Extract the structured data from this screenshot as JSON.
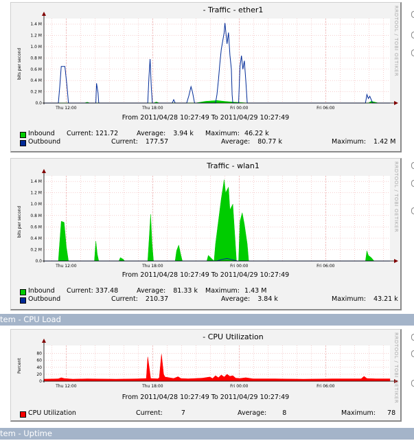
{
  "sections": [
    {
      "label": "tem - CPU Load"
    },
    {
      "label": "tem - Uptime"
    }
  ],
  "watermark": "RRDTOOL / TOBI OETIKER",
  "chart_data": [
    {
      "type": "area",
      "title": "- Traffic - ether1",
      "ylabel": "bits per second",
      "yticks": [
        "0.0",
        "0.2 M",
        "0.4 M",
        "0.6 M",
        "0.8 M",
        "1.0 M",
        "1.2 M",
        "1.4 M"
      ],
      "ylim": [
        0,
        1450000
      ],
      "xticks": [
        "Thu 12:00",
        "Thu 18:00",
        "Fri 00:00",
        "Fri 06:00"
      ],
      "xtick_hours": [
        1.54,
        7.54,
        13.54,
        19.54
      ],
      "xlim_hours": [
        0,
        24
      ],
      "range": "From 2011/04/28 10:27:49 To 2011/04/29 10:27:49",
      "series": [
        {
          "name": "Inbound",
          "color": "#00cc00",
          "style": "area",
          "current": "121.72",
          "average": "3.94 k",
          "maximum": "46.22 k",
          "points": [
            [
              0,
              0
            ],
            [
              2.8,
              0
            ],
            [
              3.0,
              15000
            ],
            [
              3.2,
              0
            ],
            [
              7.6,
              0
            ],
            [
              7.8,
              20000
            ],
            [
              8.0,
              0
            ],
            [
              10.5,
              0
            ],
            [
              11.2,
              30000
            ],
            [
              12.0,
              45000
            ],
            [
              12.5,
              30000
            ],
            [
              13.0,
              20000
            ],
            [
              14.2,
              0
            ],
            [
              22.5,
              0
            ],
            [
              22.7,
              30000
            ],
            [
              22.9,
              20000
            ],
            [
              23.2,
              0
            ],
            [
              24,
              0
            ]
          ]
        },
        {
          "name": "Outbound",
          "color": "#002a97",
          "style": "line",
          "current": "177.57",
          "average": "80.77 k",
          "maximum": "1.42 M",
          "points": [
            [
              0,
              0
            ],
            [
              1.0,
              0
            ],
            [
              1.1,
              300000
            ],
            [
              1.2,
              650000
            ],
            [
              1.45,
              650000
            ],
            [
              1.6,
              300000
            ],
            [
              1.7,
              0
            ],
            [
              3.6,
              0
            ],
            [
              3.65,
              350000
            ],
            [
              3.75,
              180000
            ],
            [
              3.8,
              0
            ],
            [
              7.2,
              0
            ],
            [
              7.28,
              450000
            ],
            [
              7.36,
              780000
            ],
            [
              7.45,
              250000
            ],
            [
              7.52,
              0
            ],
            [
              8.9,
              0
            ],
            [
              9.0,
              60000
            ],
            [
              9.1,
              0
            ],
            [
              9.9,
              0
            ],
            [
              10.05,
              130000
            ],
            [
              10.2,
              290000
            ],
            [
              10.3,
              200000
            ],
            [
              10.45,
              0
            ],
            [
              11.9,
              0
            ],
            [
              12.0,
              150000
            ],
            [
              12.1,
              400000
            ],
            [
              12.2,
              700000
            ],
            [
              12.3,
              950000
            ],
            [
              12.4,
              1100000
            ],
            [
              12.5,
              1250000
            ],
            [
              12.55,
              1420000
            ],
            [
              12.6,
              1300000
            ],
            [
              12.7,
              1050000
            ],
            [
              12.8,
              1250000
            ],
            [
              12.9,
              850000
            ],
            [
              13.0,
              600000
            ],
            [
              13.05,
              150000
            ],
            [
              13.1,
              0
            ],
            [
              13.5,
              0
            ],
            [
              13.6,
              650000
            ],
            [
              13.7,
              840000
            ],
            [
              13.8,
              600000
            ],
            [
              13.9,
              750000
            ],
            [
              14.0,
              400000
            ],
            [
              14.1,
              0
            ],
            [
              22.3,
              0
            ],
            [
              22.4,
              150000
            ],
            [
              22.5,
              80000
            ],
            [
              22.6,
              120000
            ],
            [
              22.8,
              0
            ],
            [
              24,
              0
            ]
          ]
        }
      ]
    },
    {
      "type": "area",
      "title": "Traffic - wlan1",
      "ylabel": "bits per second",
      "yticks": [
        "0.0",
        "0.2 M",
        "0.4 M",
        "0.6 M",
        "0.8 M",
        "1.0 M",
        "1.2 M",
        "1.4 M"
      ],
      "ylim": [
        0,
        1450000
      ],
      "xticks": [
        "Thu 12:00",
        "Thu 18:00",
        "Fri 00:00",
        "Fri 06:00"
      ],
      "xtick_hours": [
        1.54,
        7.54,
        13.54,
        19.54
      ],
      "xlim_hours": [
        0,
        24
      ],
      "range": "From 2011/04/28 10:27:49 To 2011/04/29 10:27:49",
      "series": [
        {
          "name": "Inbound",
          "color": "#00cc00",
          "style": "area",
          "current": "337.48",
          "average": "81.33 k",
          "maximum": "1.43 M",
          "points": [
            [
              0,
              0
            ],
            [
              1.0,
              0
            ],
            [
              1.1,
              350000
            ],
            [
              1.2,
              700000
            ],
            [
              1.4,
              680000
            ],
            [
              1.55,
              250000
            ],
            [
              1.7,
              0
            ],
            [
              3.5,
              0
            ],
            [
              3.6,
              350000
            ],
            [
              3.7,
              120000
            ],
            [
              3.8,
              0
            ],
            [
              5.2,
              0
            ],
            [
              5.3,
              60000
            ],
            [
              5.5,
              30000
            ],
            [
              5.6,
              0
            ],
            [
              7.2,
              0
            ],
            [
              7.3,
              400000
            ],
            [
              7.4,
              820000
            ],
            [
              7.5,
              300000
            ],
            [
              7.6,
              0
            ],
            [
              9.1,
              0
            ],
            [
              9.2,
              180000
            ],
            [
              9.35,
              280000
            ],
            [
              9.5,
              100000
            ],
            [
              9.6,
              0
            ],
            [
              11.3,
              0
            ],
            [
              11.4,
              100000
            ],
            [
              11.6,
              50000
            ],
            [
              11.8,
              0
            ],
            [
              11.9,
              300000
            ],
            [
              12.1,
              700000
            ],
            [
              12.3,
              1100000
            ],
            [
              12.5,
              1430000
            ],
            [
              12.6,
              1200000
            ],
            [
              12.8,
              1300000
            ],
            [
              12.9,
              900000
            ],
            [
              13.1,
              1000000
            ],
            [
              13.25,
              400000
            ],
            [
              13.35,
              0
            ],
            [
              13.5,
              0
            ],
            [
              13.6,
              700000
            ],
            [
              13.75,
              850000
            ],
            [
              13.9,
              650000
            ],
            [
              14.1,
              300000
            ],
            [
              14.2,
              0
            ],
            [
              22.3,
              0
            ],
            [
              22.4,
              180000
            ],
            [
              22.5,
              100000
            ],
            [
              22.7,
              60000
            ],
            [
              22.9,
              0
            ],
            [
              24,
              0
            ]
          ]
        },
        {
          "name": "Outbound",
          "color": "#002a97",
          "style": "line",
          "current": "210.37",
          "average": "3.84 k",
          "maximum": "43.21 k",
          "points": [
            [
              0,
              0
            ],
            [
              12.0,
              0
            ],
            [
              12.3,
              25000
            ],
            [
              12.7,
              43000
            ],
            [
              13.1,
              20000
            ],
            [
              13.4,
              0
            ],
            [
              24,
              0
            ]
          ]
        }
      ]
    },
    {
      "type": "area",
      "title": "- CPU Utilization",
      "ylabel": "Percent",
      "yticks": [
        "0",
        "20",
        "40",
        "60",
        "80"
      ],
      "ylim": [
        0,
        95
      ],
      "xticks": [
        "Thu 12:00",
        "Thu 18:00",
        "Fri 00:00",
        "Fri 06:00"
      ],
      "xtick_hours": [
        1.54,
        7.54,
        13.54,
        19.54
      ],
      "xlim_hours": [
        0,
        24
      ],
      "range": "From 2011/04/28 10:27:49 To 2011/04/29 10:27:49",
      "series": [
        {
          "name": "CPU Utilization",
          "color": "#ff0000",
          "style": "area",
          "current": "7",
          "average": "8",
          "maximum": "78",
          "points": [
            [
              0,
              6
            ],
            [
              1.0,
              7
            ],
            [
              1.2,
              10
            ],
            [
              1.4,
              8
            ],
            [
              2.0,
              6
            ],
            [
              3.0,
              7
            ],
            [
              5.0,
              6
            ],
            [
              6.5,
              7
            ],
            [
              7.1,
              8
            ],
            [
              7.2,
              70
            ],
            [
              7.3,
              40
            ],
            [
              7.4,
              8
            ],
            [
              7.9,
              7
            ],
            [
              8.0,
              10
            ],
            [
              8.15,
              78
            ],
            [
              8.3,
              20
            ],
            [
              8.4,
              12
            ],
            [
              9.0,
              8
            ],
            [
              9.3,
              13
            ],
            [
              9.5,
              8
            ],
            [
              10.0,
              7
            ],
            [
              11.0,
              9
            ],
            [
              11.5,
              12
            ],
            [
              11.7,
              8
            ],
            [
              11.9,
              16
            ],
            [
              12.1,
              10
            ],
            [
              12.3,
              18
            ],
            [
              12.5,
              12
            ],
            [
              12.7,
              20
            ],
            [
              12.9,
              14
            ],
            [
              13.1,
              16
            ],
            [
              13.3,
              9
            ],
            [
              13.6,
              8
            ],
            [
              14.0,
              10
            ],
            [
              14.5,
              7
            ],
            [
              16,
              7
            ],
            [
              18,
              6
            ],
            [
              20,
              7
            ],
            [
              22.0,
              7
            ],
            [
              22.2,
              14
            ],
            [
              22.4,
              8
            ],
            [
              23,
              7
            ],
            [
              24,
              7
            ]
          ]
        }
      ]
    }
  ]
}
